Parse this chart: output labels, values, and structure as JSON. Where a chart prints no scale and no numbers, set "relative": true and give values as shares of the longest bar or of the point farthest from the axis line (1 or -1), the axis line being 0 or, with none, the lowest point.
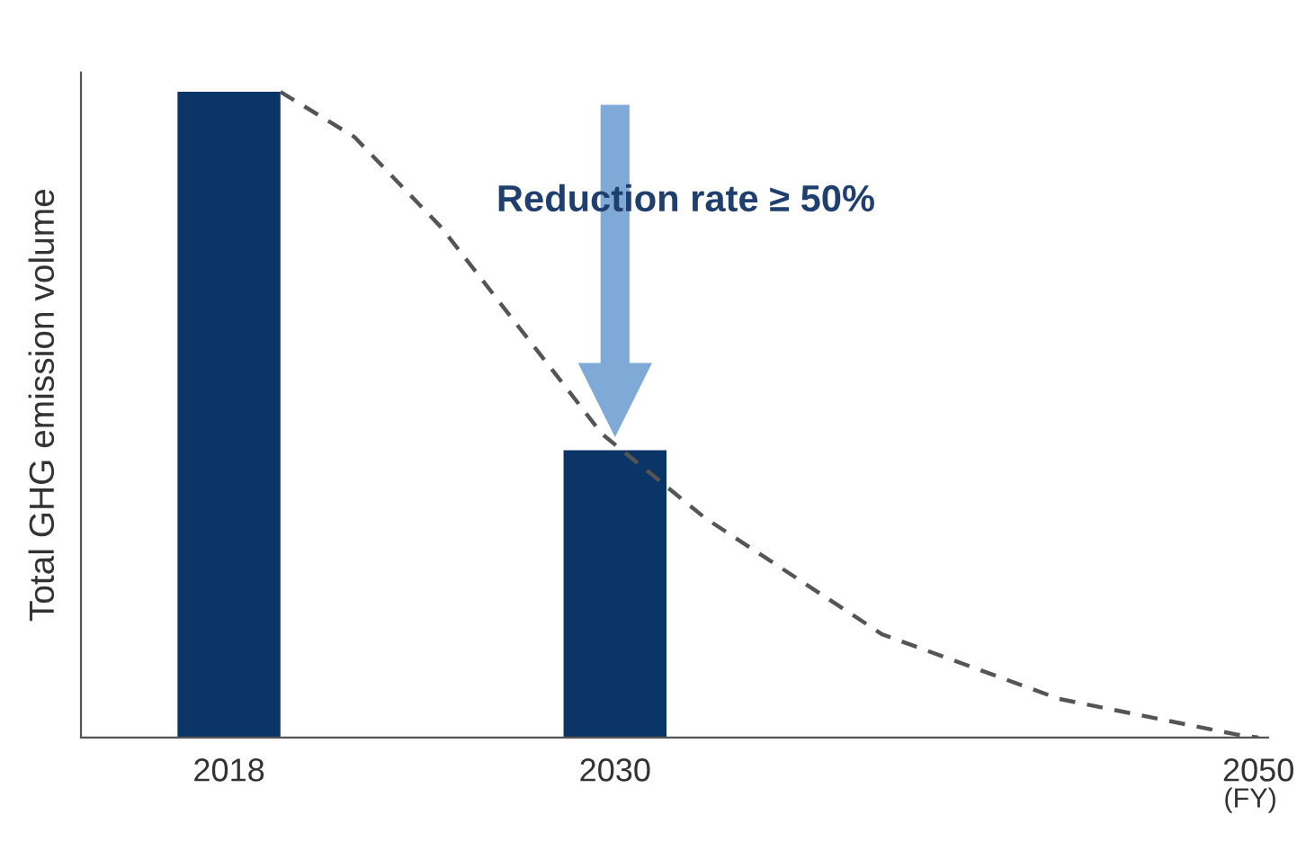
{
  "chart_data": {
    "type": "bar",
    "relative": true,
    "ylabel": "Total GHG emission volume",
    "xlabel": "(FY)",
    "xlim": [
      2013.4,
      2050.3
    ],
    "xticks": [
      2018,
      2030,
      2050
    ],
    "series": [
      {
        "x": [
          2018,
          2030
        ],
        "values": [
          1,
          0.445
        ],
        "color": "#0b3467"
      },
      {
        "type": "line",
        "x": [
          2019.6,
          2021.9,
          2024.6,
          2029.6,
          2032.8,
          2038.3,
          2043.8,
          2049.3,
          2050
        ],
        "values": [
          1,
          0.93,
          0.79,
          0.47,
          0.34,
          0.16,
          0.06,
          0.005,
          0
        ],
        "color": "#555555",
        "line_style": "dashed",
        "marker": "none"
      }
    ],
    "annotations": [
      "Reduction rate ≥ 50%"
    ],
    "grid": false,
    "legend": false
  }
}
